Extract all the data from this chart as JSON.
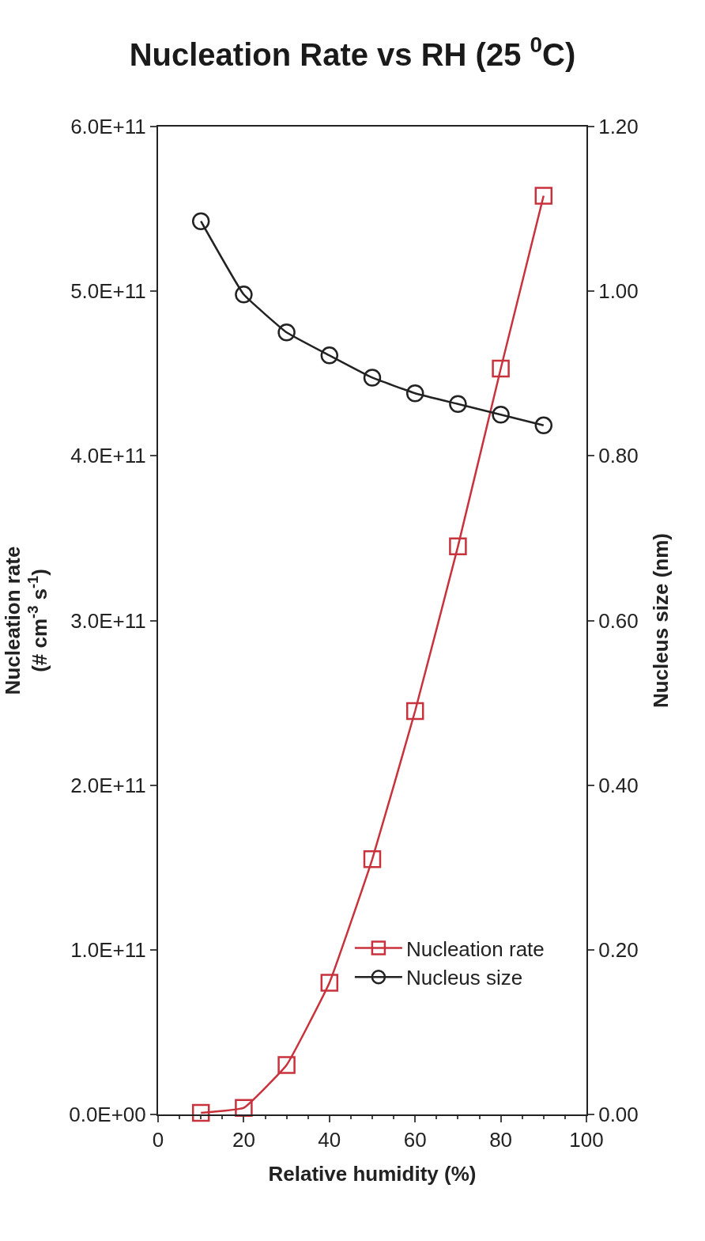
{
  "chart_data": {
    "type": "line",
    "title": "Nucleation Rate vs RH (25 $^{0}$C)",
    "xlabel": "Relative humidity (%)",
    "ylabel": "Nucleation rate\n(# cm$^{-3}$ s$^{-1}$)",
    "y2label": "Nucleus size (nm)",
    "x": [
      10,
      20,
      30,
      40,
      50,
      60,
      70,
      80,
      90
    ],
    "series": [
      {
        "name": "Nucleation rate",
        "color": "#c8323c",
        "marker": "square",
        "values": [
          1000000000.0,
          4000000000.0,
          30000000000.0,
          80000000000.0,
          155000000000.0,
          245000000000.0,
          345000000000.0,
          453000000000.0,
          558000000000.0
        ]
      },
      {
        "name": "Nucleus size",
        "color": "#222222",
        "marker": "circle",
        "axis": "y2",
        "values": [
          1.085,
          0.996,
          0.95,
          0.922,
          0.895,
          0.876,
          0.863,
          0.85,
          0.837
        ]
      }
    ],
    "xlim": [
      0,
      100
    ],
    "xticks": [
      0,
      20,
      40,
      60,
      80,
      100
    ],
    "ylim": [
      0,
      600000000000.0
    ],
    "yticks": [
      {
        "value": 0,
        "label": "0.0E+00"
      },
      {
        "value": 100000000000.0,
        "label": "1.0E+11"
      },
      {
        "value": 200000000000.0,
        "label": "2.0E+11"
      },
      {
        "value": 300000000000.0,
        "label": "3.0E+11"
      },
      {
        "value": 400000000000.0,
        "label": "4.0E+11"
      },
      {
        "value": 500000000000.0,
        "label": "5.0E+11"
      },
      {
        "value": 600000000000.0,
        "label": "6.0E+11"
      }
    ],
    "y2lim": [
      0,
      1.2
    ],
    "y2ticks": [
      {
        "value": 0,
        "label": "0.00"
      },
      {
        "value": 0.2,
        "label": "0.20"
      },
      {
        "value": 0.4,
        "label": "0.40"
      },
      {
        "value": 0.6,
        "label": "0.60"
      },
      {
        "value": 0.8,
        "label": "0.80"
      },
      {
        "value": 1,
        "label": "1.00"
      },
      {
        "value": 1.2,
        "label": "1.20"
      }
    ],
    "grid": false,
    "legend": "bottom right",
    "line_style": "solid"
  }
}
